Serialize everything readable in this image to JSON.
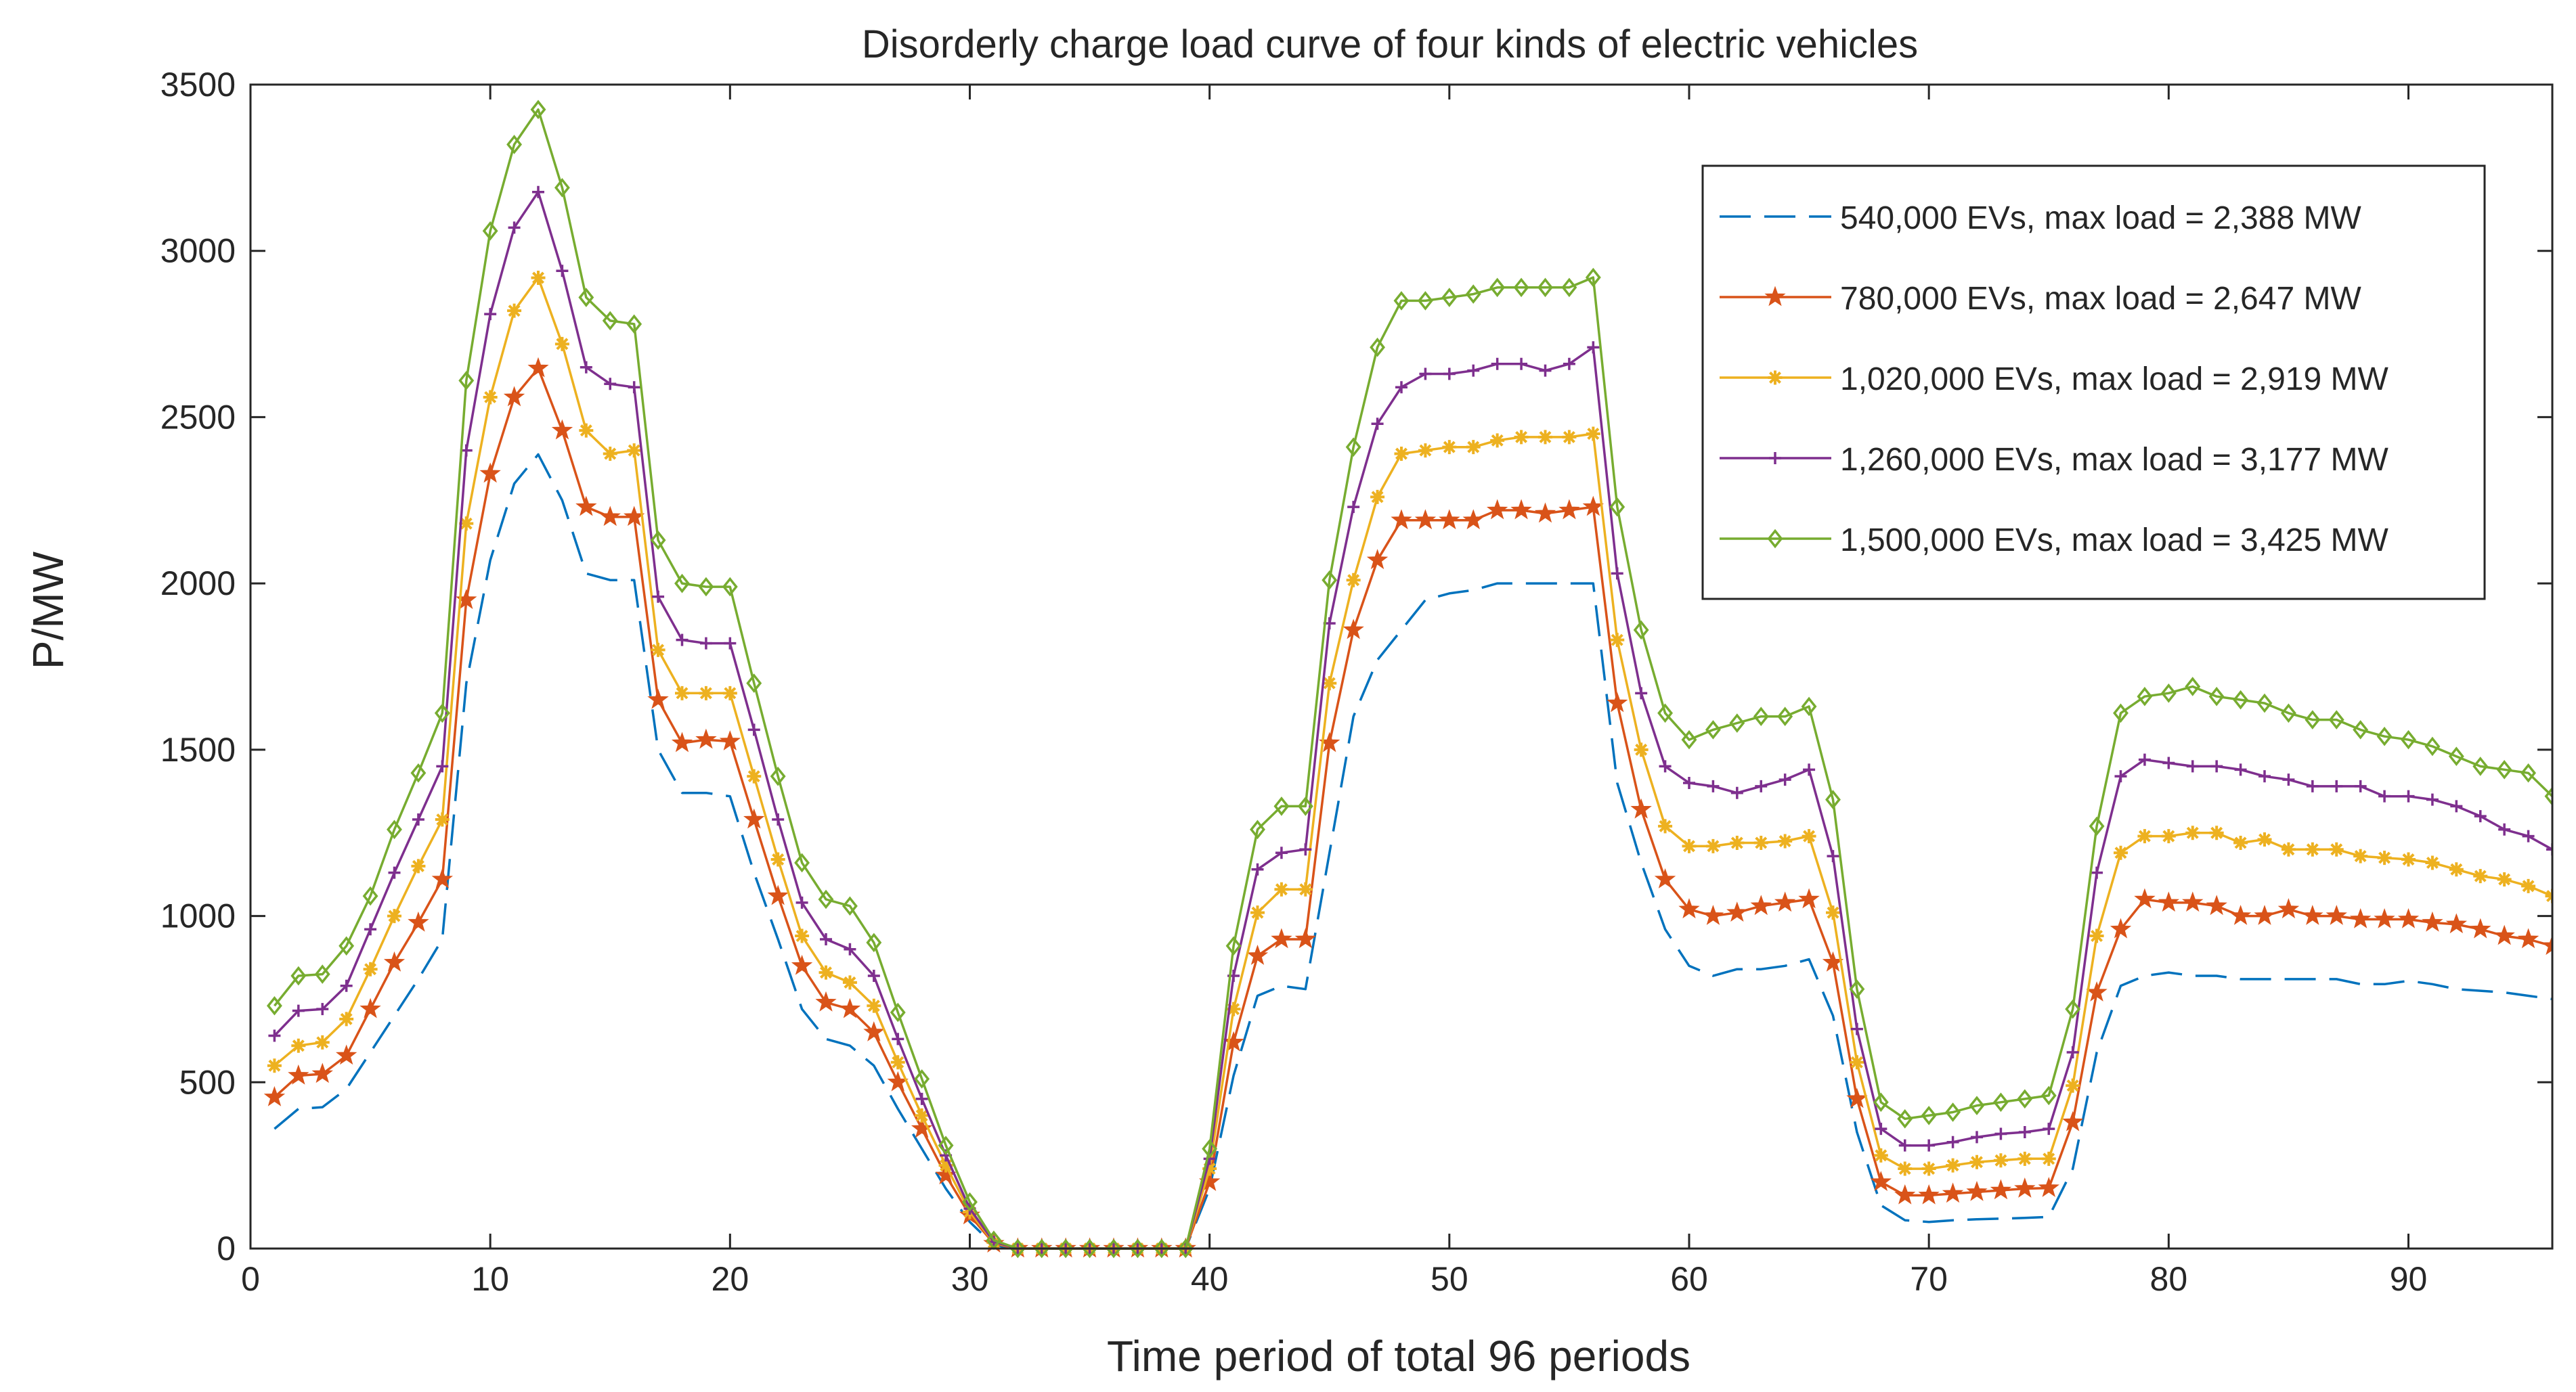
{
  "chart_data": {
    "type": "line",
    "title": "Disorderly charge load curve of four kinds of electric vehicles",
    "xlabel": "Time period of total 96 periods",
    "ylabel": "P/MW",
    "xlim": [
      0,
      96
    ],
    "ylim": [
      0,
      3500
    ],
    "xticks": [
      0,
      10,
      20,
      30,
      40,
      50,
      60,
      70,
      80,
      90
    ],
    "yticks": [
      0,
      500,
      1000,
      1500,
      2000,
      2500,
      3000,
      3500
    ],
    "grid": false,
    "legend_location": "top-right",
    "x": [
      1,
      2,
      3,
      4,
      5,
      6,
      7,
      8,
      9,
      10,
      11,
      12,
      13,
      14,
      15,
      16,
      17,
      18,
      19,
      20,
      21,
      22,
      23,
      24,
      25,
      26,
      27,
      28,
      29,
      30,
      31,
      32,
      33,
      34,
      35,
      36,
      37,
      38,
      39,
      40,
      41,
      42,
      43,
      44,
      45,
      46,
      47,
      48,
      49,
      50,
      51,
      52,
      53,
      54,
      55,
      56,
      57,
      58,
      59,
      60,
      61,
      62,
      63,
      64,
      65,
      66,
      67,
      68,
      69,
      70,
      71,
      72,
      73,
      74,
      75,
      76,
      77,
      78,
      79,
      80,
      81,
      82,
      83,
      84,
      85,
      86,
      87,
      88,
      89,
      90,
      91,
      92,
      93,
      94,
      95,
      96
    ],
    "series": [
      {
        "name": "540,000 EVs, max load = 2,388 MW",
        "color": "#0072BD",
        "line_style": "dashed",
        "marker": "none",
        "values": [
          360,
          420,
          425,
          480,
          590,
          700,
          810,
          930,
          1700,
          2070,
          2300,
          2388,
          2250,
          2030,
          2010,
          2010,
          1500,
          1370,
          1370,
          1360,
          1130,
          930,
          720,
          630,
          610,
          550,
          420,
          300,
          180,
          80,
          10,
          0,
          0,
          0,
          0,
          0,
          0,
          0,
          0,
          180,
          520,
          760,
          790,
          780,
          1190,
          1600,
          1770,
          1860,
          1950,
          1970,
          1980,
          2000,
          2000,
          2000,
          2000,
          2000,
          1400,
          1160,
          960,
          850,
          820,
          840,
          840,
          850,
          870,
          700,
          350,
          130,
          85,
          80,
          85,
          88,
          90,
          92,
          95,
          240,
          590,
          790,
          820,
          830,
          820,
          820,
          810,
          810,
          810,
          810,
          810,
          795,
          795,
          805,
          795,
          780,
          775,
          770,
          760,
          750
        ]
      },
      {
        "name": "780,000 EVs, max load = 2,647 MW",
        "color": "#D95319",
        "line_style": "solid",
        "marker": "pentagram",
        "values": [
          455,
          520,
          525,
          580,
          720,
          860,
          980,
          1110,
          1950,
          2330,
          2560,
          2647,
          2460,
          2230,
          2200,
          2200,
          1650,
          1520,
          1530,
          1525,
          1290,
          1060,
          850,
          740,
          720,
          650,
          500,
          360,
          220,
          100,
          15,
          0,
          0,
          0,
          0,
          0,
          0,
          0,
          0,
          200,
          620,
          880,
          930,
          930,
          1520,
          1860,
          2070,
          2190,
          2190,
          2190,
          2190,
          2220,
          2220,
          2210,
          2220,
          2230,
          1640,
          1320,
          1110,
          1020,
          1000,
          1010,
          1030,
          1040,
          1050,
          860,
          450,
          200,
          160,
          160,
          165,
          170,
          175,
          180,
          182,
          380,
          770,
          960,
          1050,
          1040,
          1040,
          1030,
          1000,
          1000,
          1020,
          1000,
          1000,
          990,
          990,
          990,
          980,
          975,
          960,
          940,
          930,
          910
        ]
      },
      {
        "name": "1,020,000 EVs, max load = 2,919 MW",
        "color": "#EDB120",
        "line_style": "solid",
        "marker": "asterisk",
        "values": [
          550,
          610,
          620,
          690,
          840,
          1000,
          1150,
          1290,
          2180,
          2560,
          2820,
          2919,
          2720,
          2460,
          2390,
          2400,
          1800,
          1670,
          1670,
          1670,
          1420,
          1170,
          940,
          830,
          800,
          730,
          560,
          400,
          250,
          110,
          18,
          0,
          0,
          0,
          0,
          0,
          0,
          0,
          0,
          240,
          720,
          1010,
          1080,
          1080,
          1700,
          2010,
          2260,
          2390,
          2400,
          2410,
          2410,
          2430,
          2440,
          2440,
          2440,
          2450,
          1830,
          1500,
          1270,
          1210,
          1210,
          1220,
          1220,
          1225,
          1240,
          1010,
          560,
          280,
          240,
          240,
          250,
          260,
          265,
          270,
          270,
          490,
          940,
          1190,
          1240,
          1240,
          1250,
          1250,
          1220,
          1230,
          1200,
          1200,
          1200,
          1180,
          1175,
          1170,
          1160,
          1140,
          1120,
          1110,
          1090,
          1060
        ]
      },
      {
        "name": "1,260,000 EVs, max load = 3,177 MW",
        "color": "#7E2F8E",
        "line_style": "solid",
        "marker": "plus",
        "values": [
          640,
          715,
          720,
          790,
          960,
          1130,
          1290,
          1450,
          2400,
          2810,
          3070,
          3177,
          2940,
          2650,
          2600,
          2590,
          1960,
          1830,
          1820,
          1820,
          1560,
          1290,
          1040,
          930,
          900,
          820,
          630,
          450,
          280,
          120,
          20,
          0,
          0,
          0,
          0,
          0,
          0,
          0,
          0,
          270,
          820,
          1140,
          1190,
          1200,
          1880,
          2230,
          2480,
          2590,
          2630,
          2630,
          2640,
          2660,
          2660,
          2640,
          2660,
          2710,
          2030,
          1670,
          1450,
          1400,
          1390,
          1370,
          1390,
          1410,
          1440,
          1180,
          660,
          360,
          310,
          310,
          320,
          335,
          345,
          350,
          360,
          590,
          1130,
          1420,
          1470,
          1460,
          1450,
          1450,
          1440,
          1420,
          1410,
          1390,
          1390,
          1390,
          1360,
          1360,
          1350,
          1330,
          1300,
          1260,
          1240,
          1200
        ]
      },
      {
        "name": "1,500,000 EVs, max load = 3,425 MW",
        "color": "#77AC30",
        "line_style": "solid",
        "marker": "diamond",
        "values": [
          730,
          820,
          825,
          910,
          1060,
          1260,
          1430,
          1610,
          2610,
          3060,
          3320,
          3425,
          3190,
          2860,
          2790,
          2780,
          2130,
          2000,
          1990,
          1990,
          1700,
          1420,
          1160,
          1050,
          1030,
          920,
          710,
          510,
          310,
          140,
          25,
          0,
          0,
          0,
          0,
          0,
          0,
          0,
          0,
          300,
          910,
          1260,
          1330,
          1330,
          2010,
          2410,
          2710,
          2850,
          2850,
          2860,
          2870,
          2890,
          2890,
          2890,
          2890,
          2920,
          2230,
          1860,
          1610,
          1530,
          1560,
          1580,
          1600,
          1600,
          1630,
          1350,
          780,
          440,
          390,
          400,
          410,
          430,
          440,
          450,
          460,
          720,
          1270,
          1610,
          1660,
          1670,
          1690,
          1660,
          1650,
          1640,
          1610,
          1590,
          1590,
          1560,
          1540,
          1530,
          1510,
          1480,
          1450,
          1440,
          1430,
          1360
        ]
      }
    ]
  }
}
